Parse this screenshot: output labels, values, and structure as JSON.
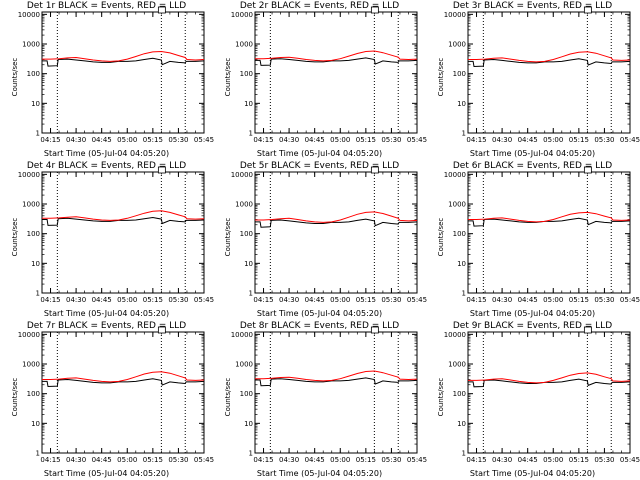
{
  "chart_data": {
    "type": "line",
    "layout": "3x3 grid",
    "y_axis_label": "Counts/sec",
    "x_axis_label": "Start Time (05-Jul-04 04:05:20)",
    "x_tick_labels": [
      "04:15",
      "04:30",
      "04:45",
      "05:00",
      "05:15",
      "05:30",
      "05:45"
    ],
    "x_ticks_min": [
      10,
      25,
      40,
      55,
      70,
      85,
      100
    ],
    "xlim_min": [
      5,
      100
    ],
    "y_scale": "log",
    "ylim": [
      1,
      12000
    ],
    "y_tick_labels": [
      "1",
      "10",
      "100",
      "1000",
      "10000"
    ],
    "y_ticks": [
      1,
      10,
      100,
      1000,
      10000
    ],
    "vertical_markers_min": [
      14,
      75,
      89
    ],
    "colors": {
      "events": "#000000",
      "lld": "#ff0000",
      "markers": "#000000"
    },
    "panels": [
      {
        "title": "Det 1r BLACK = Events, RED = LLD",
        "series": [
          {
            "name": "Events",
            "color": "#000000",
            "x": [
              5,
              8,
              8.5,
              14,
              14.5,
              20,
              25,
              30,
              35,
              40,
              45,
              50,
              55,
              60,
              65,
              70,
              75,
              75.5,
              80,
              85,
              89,
              89.5,
              95,
              100
            ],
            "y": [
              270,
              270,
              180,
              185,
              300,
              310,
              290,
              270,
              250,
              240,
              240,
              260,
              260,
              270,
              300,
              330,
              290,
              200,
              260,
              240,
              230,
              260,
              260,
              270
            ]
          },
          {
            "name": "LLD",
            "color": "#ff0000",
            "x": [
              5,
              10,
              15,
              20,
              25,
              30,
              35,
              40,
              45,
              50,
              55,
              60,
              65,
              70,
              75,
              80,
              85,
              89,
              90,
              95,
              100
            ],
            "y": [
              310,
              310,
              320,
              340,
              350,
              320,
              290,
              270,
              260,
              270,
              310,
              380,
              470,
              540,
              560,
              500,
              410,
              350,
              300,
              290,
              300
            ]
          }
        ]
      },
      {
        "title": "Det 2r BLACK = Events, RED = LLD",
        "series": [
          {
            "name": "Events",
            "color": "#000000",
            "x": [
              5,
              8,
              8.5,
              14,
              14.5,
              20,
              25,
              30,
              35,
              40,
              45,
              50,
              55,
              60,
              65,
              70,
              75,
              75.5,
              80,
              85,
              89,
              89.5,
              95,
              100
            ],
            "y": [
              280,
              280,
              190,
              195,
              310,
              320,
              300,
              280,
              260,
              250,
              250,
              270,
              270,
              280,
              310,
              340,
              300,
              210,
              270,
              250,
              240,
              270,
              270,
              280
            ]
          },
          {
            "name": "LLD",
            "color": "#ff0000",
            "x": [
              5,
              10,
              15,
              20,
              25,
              30,
              35,
              40,
              45,
              50,
              55,
              60,
              65,
              70,
              75,
              80,
              85,
              89,
              90,
              95,
              100
            ],
            "y": [
              320,
              320,
              330,
              350,
              360,
              330,
              300,
              280,
              270,
              280,
              320,
              390,
              480,
              560,
              580,
              510,
              420,
              360,
              310,
              300,
              310
            ]
          }
        ]
      },
      {
        "title": "Det 3r BLACK = Events, RED = LLD",
        "series": [
          {
            "name": "Events",
            "color": "#000000",
            "x": [
              5,
              8,
              8.5,
              14,
              14.5,
              20,
              25,
              30,
              35,
              40,
              45,
              50,
              55,
              60,
              65,
              70,
              75,
              75.5,
              80,
              85,
              89,
              89.5,
              95,
              100
            ],
            "y": [
              260,
              260,
              175,
              180,
              290,
              300,
              280,
              260,
              240,
              230,
              230,
              250,
              250,
              260,
              290,
              320,
              280,
              195,
              250,
              230,
              220,
              250,
              250,
              260
            ]
          },
          {
            "name": "LLD",
            "color": "#ff0000",
            "x": [
              5,
              10,
              15,
              20,
              25,
              30,
              35,
              40,
              45,
              50,
              55,
              60,
              65,
              70,
              75,
              80,
              85,
              89,
              90,
              95,
              100
            ],
            "y": [
              300,
              300,
              310,
              330,
              340,
              310,
              280,
              260,
              250,
              260,
              300,
              370,
              460,
              530,
              550,
              490,
              400,
              340,
              290,
              280,
              290
            ]
          }
        ]
      },
      {
        "title": "Det 4r BLACK = Events, RED = LLD",
        "series": [
          {
            "name": "Events",
            "color": "#000000",
            "x": [
              5,
              8,
              8.5,
              14,
              14.5,
              20,
              25,
              30,
              35,
              40,
              45,
              50,
              55,
              60,
              65,
              70,
              75,
              75.5,
              80,
              85,
              89,
              89.5,
              95,
              100
            ],
            "y": [
              300,
              300,
              190,
              195,
              320,
              330,
              310,
              290,
              270,
              260,
              260,
              280,
              280,
              290,
              320,
              350,
              310,
              220,
              280,
              260,
              250,
              280,
              280,
              290
            ]
          },
          {
            "name": "LLD",
            "color": "#ff0000",
            "x": [
              5,
              10,
              15,
              20,
              25,
              30,
              35,
              40,
              45,
              50,
              55,
              60,
              65,
              70,
              75,
              80,
              85,
              89,
              90,
              95,
              100
            ],
            "y": [
              330,
              330,
              340,
              360,
              370,
              340,
              310,
              290,
              280,
              290,
              330,
              400,
              490,
              570,
              590,
              520,
              430,
              370,
              320,
              310,
              320
            ]
          }
        ]
      },
      {
        "title": "Det 5r BLACK = Events, RED = LLD",
        "series": [
          {
            "name": "Events",
            "color": "#000000",
            "x": [
              5,
              8,
              8.5,
              14,
              14.5,
              20,
              25,
              30,
              35,
              40,
              45,
              50,
              55,
              60,
              65,
              70,
              75,
              75.5,
              80,
              85,
              89,
              89.5,
              95,
              100
            ],
            "y": [
              250,
              250,
              165,
              170,
              280,
              290,
              270,
              250,
              230,
              220,
              220,
              240,
              240,
              250,
              280,
              310,
              270,
              185,
              240,
              220,
              210,
              240,
              240,
              250
            ]
          },
          {
            "name": "LLD",
            "color": "#ff0000",
            "x": [
              5,
              10,
              15,
              20,
              25,
              30,
              35,
              40,
              45,
              50,
              55,
              60,
              65,
              70,
              75,
              80,
              85,
              89,
              90,
              95,
              100
            ],
            "y": [
              290,
              290,
              300,
              320,
              330,
              300,
              270,
              250,
              240,
              250,
              290,
              360,
              450,
              520,
              540,
              480,
              390,
              330,
              280,
              270,
              280
            ]
          }
        ]
      },
      {
        "title": "Det 6r BLACK = Events, RED = LLD",
        "series": [
          {
            "name": "Events",
            "color": "#000000",
            "x": [
              5,
              8,
              8.5,
              14,
              14.5,
              20,
              25,
              30,
              35,
              40,
              45,
              50,
              55,
              60,
              65,
              70,
              75,
              75.5,
              80,
              85,
              89,
              89.5,
              95,
              100
            ],
            "y": [
              270,
              270,
              180,
              185,
              300,
              310,
              290,
              270,
              250,
              240,
              240,
              260,
              260,
              270,
              300,
              330,
              290,
              200,
              260,
              240,
              230,
              260,
              260,
              270
            ]
          },
          {
            "name": "LLD",
            "color": "#ff0000",
            "x": [
              5,
              10,
              15,
              20,
              25,
              30,
              35,
              40,
              45,
              50,
              55,
              60,
              65,
              70,
              75,
              80,
              85,
              89,
              90,
              95,
              100
            ],
            "y": [
              300,
              300,
              310,
              330,
              340,
              310,
              280,
              260,
              250,
              260,
              300,
              370,
              450,
              500,
              520,
              470,
              390,
              340,
              290,
              280,
              290
            ]
          }
        ]
      },
      {
        "title": "Det 7r BLACK = Events, RED = LLD",
        "series": [
          {
            "name": "Events",
            "color": "#000000",
            "x": [
              5,
              8,
              8.5,
              14,
              14.5,
              20,
              25,
              30,
              35,
              40,
              45,
              50,
              55,
              60,
              65,
              70,
              75,
              75.5,
              80,
              85,
              89,
              89.5,
              95,
              100
            ],
            "y": [
              260,
              260,
              175,
              180,
              290,
              300,
              280,
              260,
              240,
              230,
              230,
              250,
              250,
              260,
              290,
              320,
              280,
              195,
              250,
              230,
              220,
              250,
              250,
              260
            ]
          },
          {
            "name": "LLD",
            "color": "#ff0000",
            "x": [
              5,
              10,
              15,
              20,
              25,
              30,
              35,
              40,
              45,
              50,
              55,
              60,
              65,
              70,
              75,
              80,
              85,
              89,
              90,
              95,
              100
            ],
            "y": [
              300,
              300,
              310,
              330,
              340,
              310,
              280,
              260,
              250,
              260,
              300,
              370,
              460,
              530,
              550,
              490,
              400,
              340,
              290,
              280,
              290
            ]
          }
        ]
      },
      {
        "title": "Det 8r BLACK = Events, RED = LLD",
        "series": [
          {
            "name": "Events",
            "color": "#000000",
            "x": [
              5,
              8,
              8.5,
              14,
              14.5,
              20,
              25,
              30,
              35,
              40,
              45,
              50,
              55,
              60,
              65,
              70,
              75,
              75.5,
              80,
              85,
              89,
              89.5,
              95,
              100
            ],
            "y": [
              290,
              290,
              185,
              190,
              310,
              320,
              300,
              280,
              260,
              250,
              250,
              270,
              270,
              280,
              310,
              340,
              300,
              210,
              270,
              250,
              240,
              270,
              270,
              280
            ]
          },
          {
            "name": "LLD",
            "color": "#ff0000",
            "x": [
              5,
              10,
              15,
              20,
              25,
              30,
              35,
              40,
              45,
              50,
              55,
              60,
              65,
              70,
              75,
              80,
              85,
              89,
              90,
              95,
              100
            ],
            "y": [
              320,
              320,
              330,
              350,
              360,
              330,
              300,
              280,
              270,
              280,
              320,
              390,
              480,
              560,
              580,
              510,
              420,
              360,
              310,
              300,
              310
            ]
          }
        ]
      },
      {
        "title": "Det 9r BLACK = Events, RED = LLD",
        "series": [
          {
            "name": "Events",
            "color": "#000000",
            "x": [
              5,
              8,
              8.5,
              14,
              14.5,
              20,
              25,
              30,
              35,
              40,
              45,
              50,
              55,
              60,
              65,
              70,
              75,
              75.5,
              80,
              85,
              89,
              89.5,
              95,
              100
            ],
            "y": [
              250,
              250,
              170,
              175,
              280,
              290,
              270,
              250,
              230,
              220,
              220,
              240,
              240,
              250,
              280,
              310,
              270,
              190,
              240,
              220,
              210,
              240,
              240,
              250
            ]
          },
          {
            "name": "LLD",
            "color": "#ff0000",
            "x": [
              5,
              10,
              15,
              20,
              25,
              30,
              35,
              40,
              45,
              50,
              55,
              60,
              65,
              70,
              75,
              80,
              85,
              89,
              90,
              95,
              100
            ],
            "y": [
              280,
              280,
              290,
              310,
              320,
              290,
              260,
              240,
              230,
              240,
              280,
              340,
              420,
              480,
              500,
              450,
              370,
              320,
              270,
              260,
              270
            ]
          }
        ]
      }
    ]
  }
}
